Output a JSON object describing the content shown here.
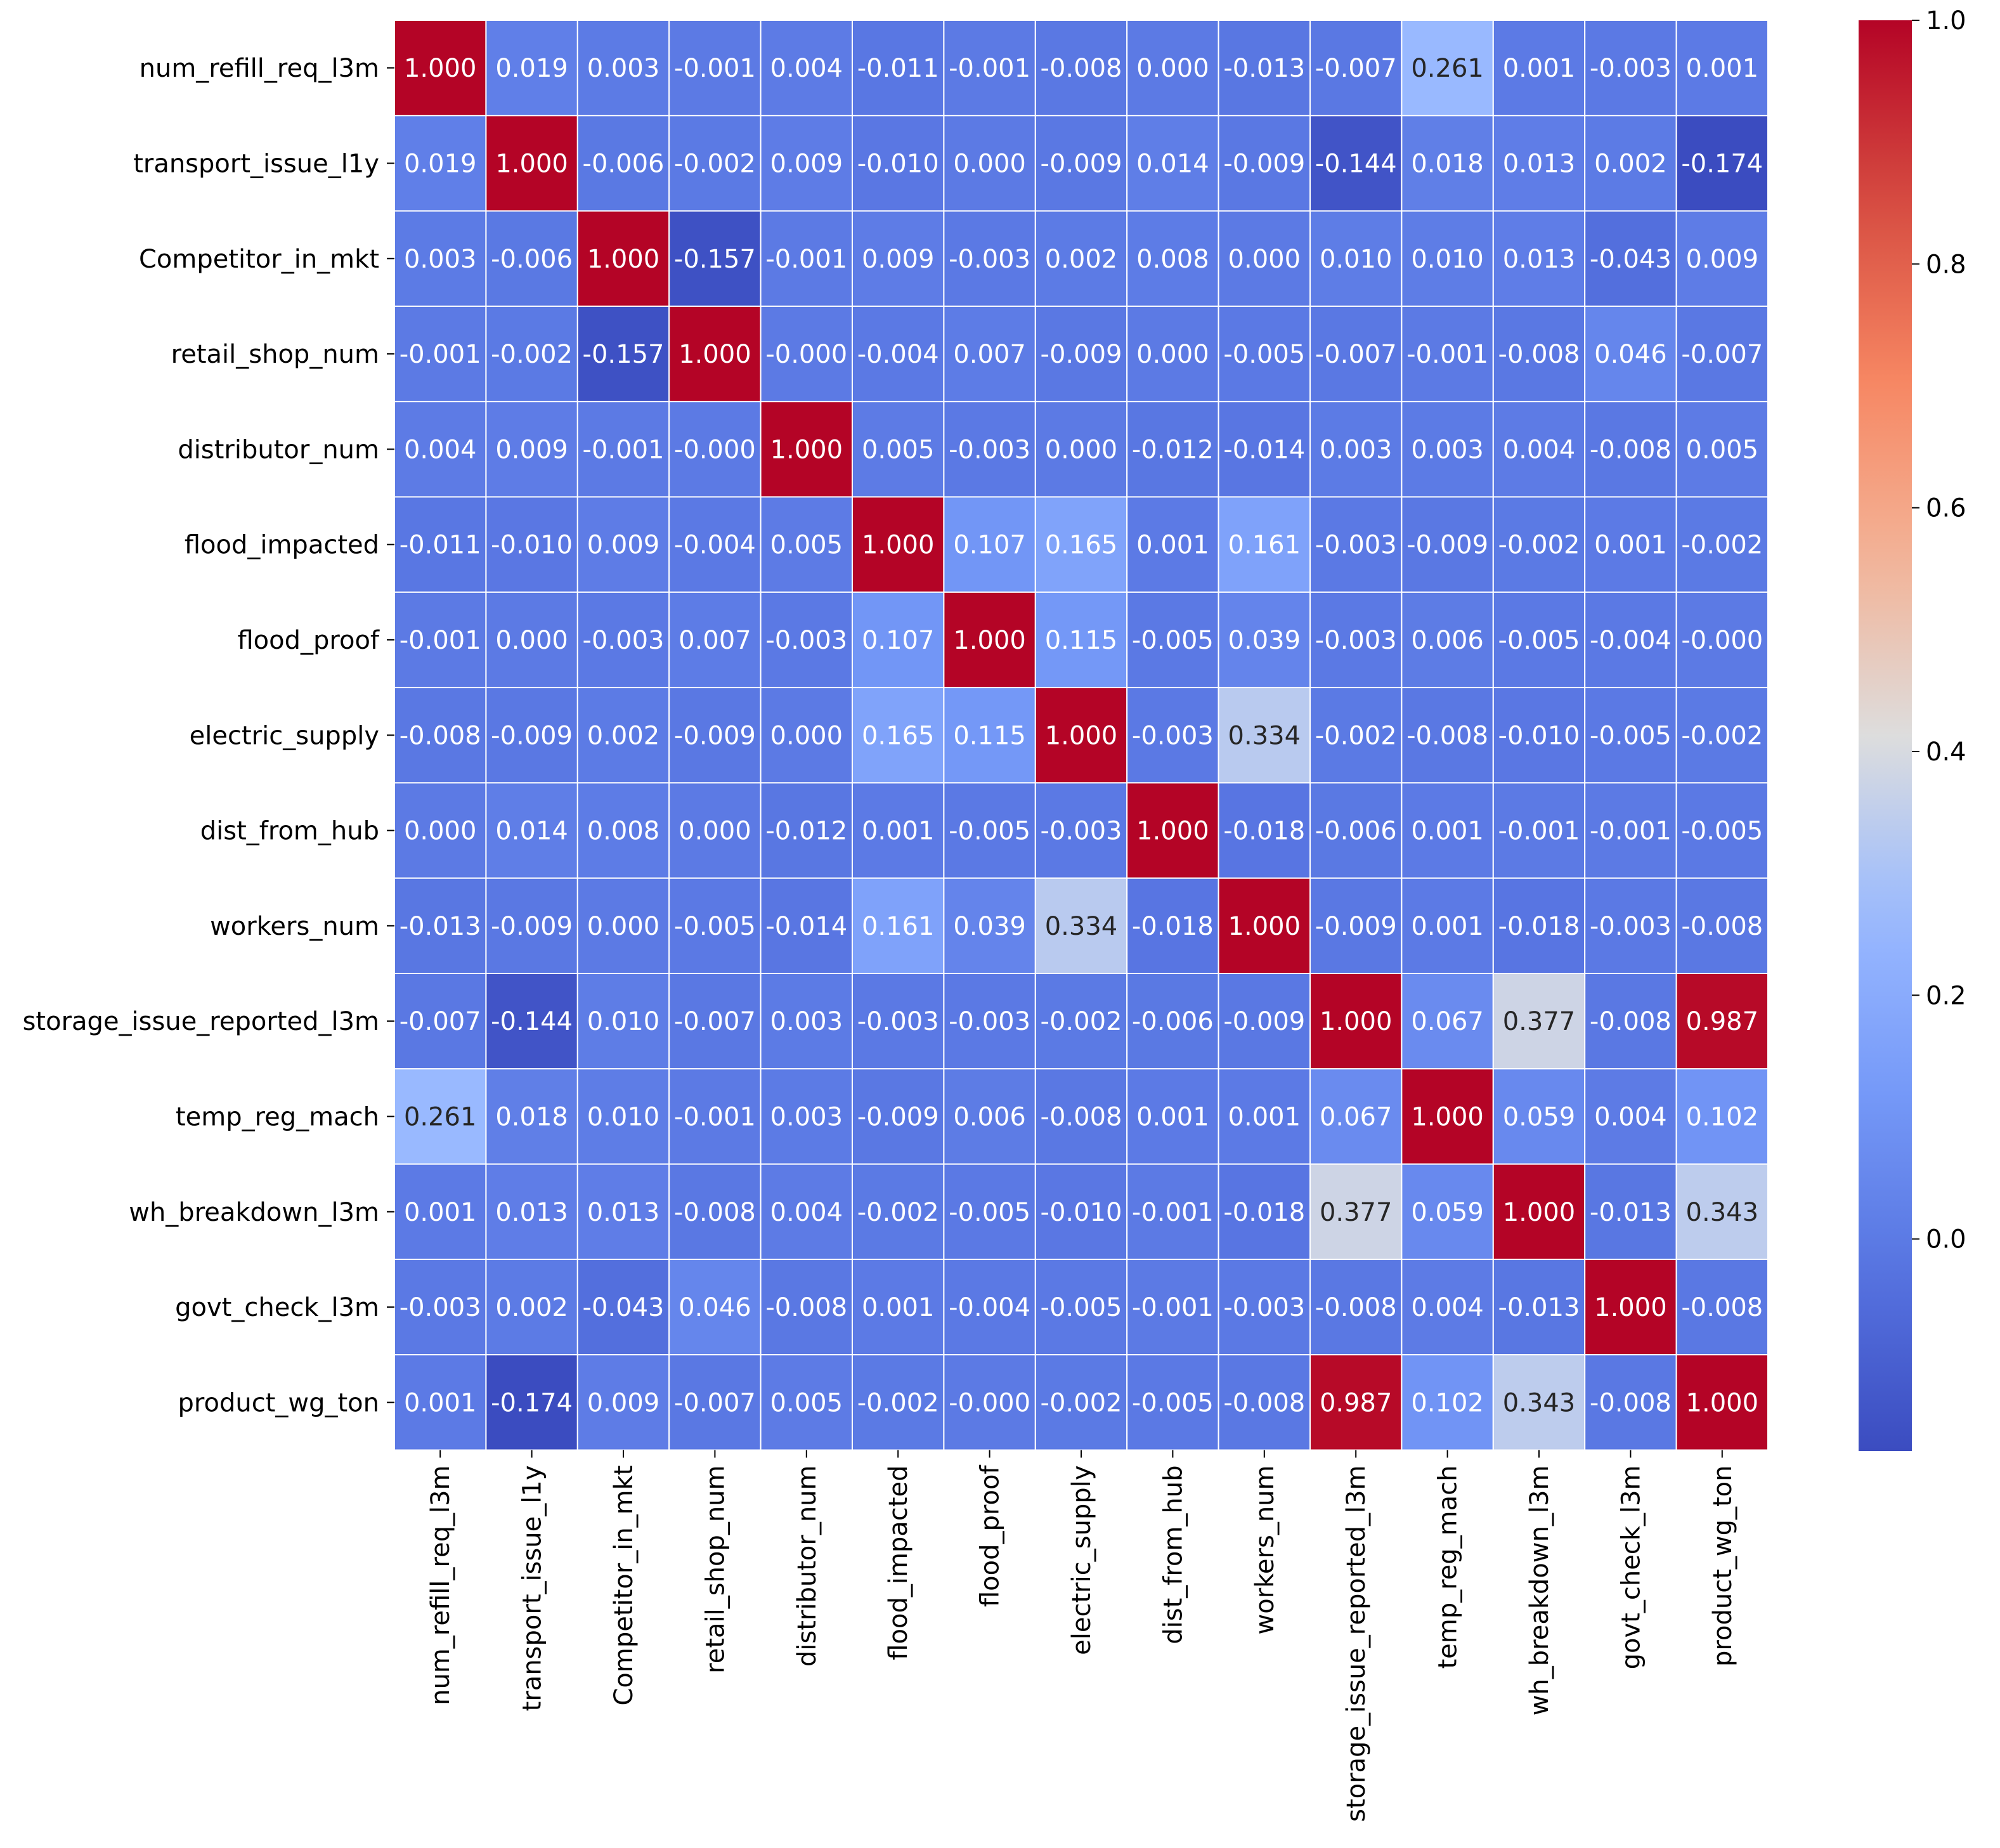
{
  "colors": {
    "low": "#3b4cc0",
    "mid": "#dddddd",
    "high": "#b40426",
    "grid": "#ffffff",
    "text_dark": "#262626",
    "text_light": "#ffffff"
  },
  "chart_data": {
    "type": "heatmap",
    "title": "",
    "xlabel": "",
    "ylabel": "",
    "labels": [
      "num_refill_req_l3m",
      "transport_issue_l1y",
      "Competitor_in_mkt",
      "retail_shop_num",
      "distributor_num",
      "flood_impacted",
      "flood_proof",
      "electric_supply",
      "dist_from_hub",
      "workers_num",
      "storage_issue_reported_l3m",
      "temp_reg_mach",
      "wh_breakdown_l3m",
      "govt_check_l3m",
      "product_wg_ton"
    ],
    "cell_labels": [
      [
        "1.000",
        "0.019",
        "0.003",
        "-0.001",
        "0.004",
        "-0.011",
        "-0.001",
        "-0.008",
        "0.000",
        "-0.013",
        "-0.007",
        "0.261",
        "0.001",
        "-0.003",
        "0.001"
      ],
      [
        "0.019",
        "1.000",
        "-0.006",
        "-0.002",
        "0.009",
        "-0.010",
        "0.000",
        "-0.009",
        "0.014",
        "-0.009",
        "-0.144",
        "0.018",
        "0.013",
        "0.002",
        "-0.174"
      ],
      [
        "0.003",
        "-0.006",
        "1.000",
        "-0.157",
        "-0.001",
        "0.009",
        "-0.003",
        "0.002",
        "0.008",
        "0.000",
        "0.010",
        "0.010",
        "0.013",
        "-0.043",
        "0.009"
      ],
      [
        "-0.001",
        "-0.002",
        "-0.157",
        "1.000",
        "-0.000",
        "-0.004",
        "0.007",
        "-0.009",
        "0.000",
        "-0.005",
        "-0.007",
        "-0.001",
        "-0.008",
        "0.046",
        "-0.007"
      ],
      [
        "0.004",
        "0.009",
        "-0.001",
        "-0.000",
        "1.000",
        "0.005",
        "-0.003",
        "0.000",
        "-0.012",
        "-0.014",
        "0.003",
        "0.003",
        "0.004",
        "-0.008",
        "0.005"
      ],
      [
        "-0.011",
        "-0.010",
        "0.009",
        "-0.004",
        "0.005",
        "1.000",
        "0.107",
        "0.165",
        "0.001",
        "0.161",
        "-0.003",
        "-0.009",
        "-0.002",
        "0.001",
        "-0.002"
      ],
      [
        "-0.001",
        "0.000",
        "-0.003",
        "0.007",
        "-0.003",
        "0.107",
        "1.000",
        "0.115",
        "-0.005",
        "0.039",
        "-0.003",
        "0.006",
        "-0.005",
        "-0.004",
        "-0.000"
      ],
      [
        "-0.008",
        "-0.009",
        "0.002",
        "-0.009",
        "0.000",
        "0.165",
        "0.115",
        "1.000",
        "-0.003",
        "0.334",
        "-0.002",
        "-0.008",
        "-0.010",
        "-0.005",
        "-0.002"
      ],
      [
        "0.000",
        "0.014",
        "0.008",
        "0.000",
        "-0.012",
        "0.001",
        "-0.005",
        "-0.003",
        "1.000",
        "-0.018",
        "-0.006",
        "0.001",
        "-0.001",
        "-0.001",
        "-0.005"
      ],
      [
        "-0.013",
        "-0.009",
        "0.000",
        "-0.005",
        "-0.014",
        "0.161",
        "0.039",
        "0.334",
        "-0.018",
        "1.000",
        "-0.009",
        "0.001",
        "-0.018",
        "-0.003",
        "-0.008"
      ],
      [
        "-0.007",
        "-0.144",
        "0.010",
        "-0.007",
        "0.003",
        "-0.003",
        "-0.003",
        "-0.002",
        "-0.006",
        "-0.009",
        "1.000",
        "0.067",
        "0.377",
        "-0.008",
        "0.987"
      ],
      [
        "0.261",
        "0.018",
        "0.010",
        "-0.001",
        "0.003",
        "-0.009",
        "0.006",
        "-0.008",
        "0.001",
        "0.001",
        "0.067",
        "1.000",
        "0.059",
        "0.004",
        "0.102"
      ],
      [
        "0.001",
        "0.013",
        "0.013",
        "-0.008",
        "0.004",
        "-0.002",
        "-0.005",
        "-0.010",
        "-0.001",
        "-0.018",
        "0.377",
        "0.059",
        "1.000",
        "-0.013",
        "0.343"
      ],
      [
        "-0.003",
        "0.002",
        "-0.043",
        "0.046",
        "-0.008",
        "0.001",
        "-0.004",
        "-0.005",
        "-0.001",
        "-0.003",
        "-0.008",
        "0.004",
        "-0.013",
        "1.000",
        "-0.008"
      ],
      [
        "0.001",
        "-0.174",
        "0.009",
        "-0.007",
        "0.005",
        "-0.002",
        "-0.000",
        "-0.002",
        "-0.005",
        "-0.008",
        "0.987",
        "0.102",
        "0.343",
        "-0.008",
        "1.000"
      ]
    ],
    "vmin": -0.174,
    "vmax": 1.0,
    "colormap": "coolwarm",
    "colorbar": {
      "ticks": [
        0.0,
        0.2,
        0.4,
        0.6,
        0.8,
        1.0
      ],
      "tick_labels": [
        "0.0",
        "0.2",
        "0.4",
        "0.6",
        "0.8",
        "1.0"
      ],
      "position": "right"
    }
  }
}
